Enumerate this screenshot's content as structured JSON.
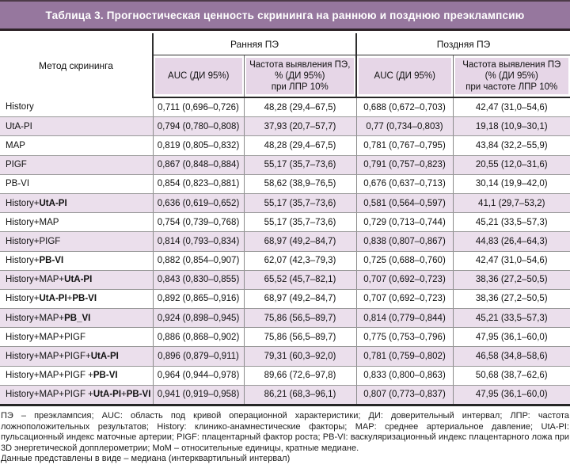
{
  "title": "Таблица 3. Прогностическая ценность скрининга на раннюю и позднюю преэклампсию",
  "colors": {
    "title_bar": "#96779e",
    "subheader_cell": "#e6d6e7",
    "shaded_row": "#ebdfec",
    "dark_border": "#2e2328",
    "gray_border": "#8c8c8c"
  },
  "header": {
    "method_col": "Метод скрининга",
    "groups": [
      {
        "label": "Ранняя ПЭ",
        "sub": [
          "AUC (ДИ 95%)",
          "Частота выявления ПЭ,\n% (ДИ 95%)\nпри ЛПР 10%"
        ]
      },
      {
        "label": "Поздняя ПЭ",
        "sub": [
          "AUC (ДИ 95%)",
          "Частота выявления ПЭ\n(% (ДИ 95%)\nпри частоте ЛПР 10%"
        ]
      }
    ]
  },
  "rows": [
    {
      "method": [
        {
          "text": "History",
          "bold": false
        }
      ],
      "values": [
        "0,711 (0,696–0,726)",
        "48,28 (29,4–67,5)",
        "0,688 (0,672–0,703)",
        "42,47 (31,0–54,6)"
      ]
    },
    {
      "method": [
        {
          "text": "UtA-PI",
          "bold": false
        }
      ],
      "values": [
        "0,794 (0,780–0,808)",
        "37,93 (20,7–57,7)",
        "0,77 (0,734–0,803)",
        "19,18 (10,9–30,1)"
      ]
    },
    {
      "method": [
        {
          "text": "MAP",
          "bold": false
        }
      ],
      "values": [
        "0,819 (0,805–0,832)",
        "48,28 (29,4–67,5)",
        "0,781 (0,767–0,795)",
        "43,84 (32,2–55,9)"
      ]
    },
    {
      "method": [
        {
          "text": "PIGF",
          "bold": false
        }
      ],
      "values": [
        "0,867 (0,848–0,884)",
        "55,17 (35,7–73,6)",
        "0,791 (0,757–0,823)",
        "20,55 (12,0–31,6)"
      ]
    },
    {
      "method": [
        {
          "text": "PB-VI",
          "bold": false
        }
      ],
      "values": [
        "0,854 (0,823–0,881)",
        "58,62 (38,9–76,5)",
        "0,676 (0,637–0,713)",
        "30,14 (19,9–42,0)"
      ]
    },
    {
      "method": [
        {
          "text": "History+",
          "bold": false
        },
        {
          "text": "UtA-PI",
          "bold": true
        }
      ],
      "values": [
        "0,636 (0,619–0,652)",
        "55,17 (35,7–73,6)",
        "0,581 (0,564–0,597)",
        "41,1 (29,7–53,2)"
      ]
    },
    {
      "method": [
        {
          "text": "History+MAP",
          "bold": false
        }
      ],
      "values": [
        "0,754 (0,739–0,768)",
        "55,17 (35,7–73,6)",
        "0,729 (0,713–0,744)",
        "45,21 (33,5–57,3)"
      ]
    },
    {
      "method": [
        {
          "text": "History+PIGF",
          "bold": false
        }
      ],
      "values": [
        "0,814 (0,793–0,834)",
        "68,97 (49,2–84,7)",
        "0,838 (0,807–0,867)",
        "44,83 (26,4–64,3)"
      ]
    },
    {
      "method": [
        {
          "text": "History+",
          "bold": false
        },
        {
          "text": "PB-VI",
          "bold": true
        }
      ],
      "values": [
        "0,882 (0,854–0,907)",
        "62,07 (42,3–79,3)",
        "0,725 (0,688–0,760)",
        "42,47 (31,0–54,6)"
      ]
    },
    {
      "method": [
        {
          "text": "History+MAP+",
          "bold": false
        },
        {
          "text": "UtA-PI",
          "bold": true
        }
      ],
      "values": [
        "0,843 (0,830–0,855)",
        "65,52 (45,7–82,1)",
        "0,707 (0,692–0,723)",
        "38,36 (27,2–50,5)"
      ]
    },
    {
      "method": [
        {
          "text": "History+",
          "bold": false
        },
        {
          "text": "UtA-PI",
          "bold": true
        },
        {
          "text": "+",
          "bold": false
        },
        {
          "text": "PB-VI",
          "bold": true
        }
      ],
      "values": [
        "0,892 (0,865–0,916)",
        "68,97 (49,2–84,7)",
        "0,707 (0,692–0,723)",
        "38,36 (27,2–50,5)"
      ]
    },
    {
      "method": [
        {
          "text": "History+MAP+",
          "bold": false
        },
        {
          "text": "PB_VI",
          "bold": true
        }
      ],
      "values": [
        "0,924 (0,898–0,945)",
        "75,86 (56,5–89,7)",
        "0,814 (0,779–0,844)",
        "45,21 (33,5–57,3)"
      ]
    },
    {
      "method": [
        {
          "text": "History+MAP+PIGF",
          "bold": false
        }
      ],
      "values": [
        "0,886 (0,868–0,902)",
        "75,86 (56,5–89,7)",
        "0,775 (0,753–0,796)",
        "47,95 (36,1–60,0)"
      ]
    },
    {
      "method": [
        {
          "text": "History+MAP+PIGF+",
          "bold": false
        },
        {
          "text": "UtA-PI",
          "bold": true
        }
      ],
      "values": [
        "0,896 (0,879–0,911)",
        "79,31 (60,3–92,0)",
        "0,781 (0,759–0,802)",
        "46,58 (34,8–58,6)"
      ]
    },
    {
      "method": [
        {
          "text": "History+MAP+PIGF +",
          "bold": false
        },
        {
          "text": "PB-VI",
          "bold": true
        }
      ],
      "values": [
        "0,964 (0,944–0,978)",
        "89,66 (72,6–97,8)",
        "0,833 (0,800–0,863)",
        "50,68 (38,7–62,6)"
      ]
    },
    {
      "method": [
        {
          "text": "History+MAP+PIGF +",
          "bold": false
        },
        {
          "text": "UtA-PI",
          "bold": true
        },
        {
          "text": "+",
          "bold": false
        },
        {
          "text": "PB-VI",
          "bold": true
        }
      ],
      "values": [
        "0,941 (0,919–0,958)",
        "86,21 (68,3–96,1)",
        "0,807 (0,773–0,837)",
        "47,95 (36,1–60,0)"
      ]
    }
  ],
  "footnotes": [
    "ПЭ – преэклампсия; AUC: область под кривой операционной характеристики; ДИ: доверительный интервал; ЛПР: частота ложноположительных результатов; History: клинико-анамнестические факторы; MAP: среднее артериальное давление; UtA-PI: пульсационный индекс маточные артерии; PIGF: плацентарный фактор роста; PB-VI: васкуляризационный индекс плацентарного ложа при 3D энергетической допплерометрии; MoM – относительные единицы, кратные медиане.",
    "Данные представлены в виде – медиана (интерквартильный интервал)"
  ]
}
